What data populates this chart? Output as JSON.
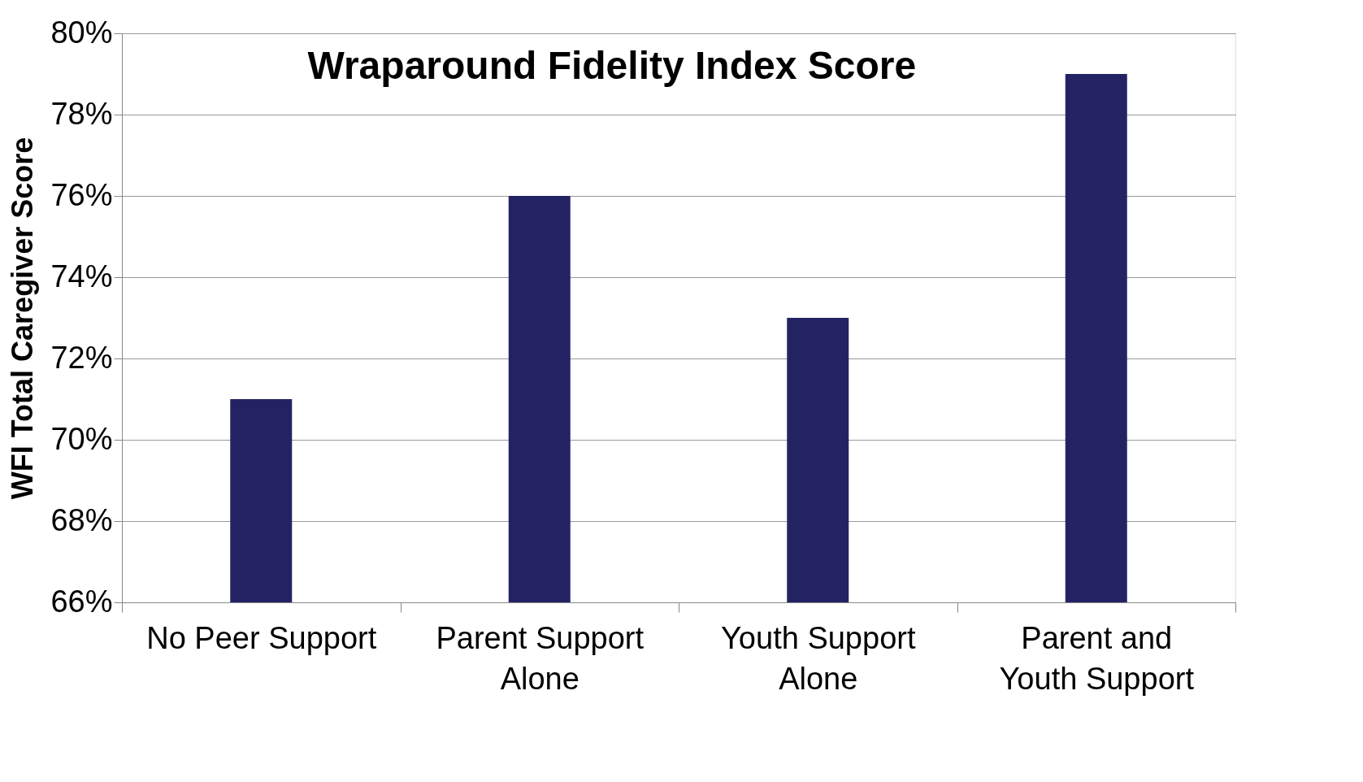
{
  "chart_data": {
    "type": "bar",
    "title": "Wraparound Fidelity Index Score",
    "ylabel": "WFI Total Caregiver Score",
    "categories": [
      "No Peer Support",
      "Parent Support Alone",
      "Youth Support Alone",
      "Parent and Youth Support"
    ],
    "values": [
      71,
      76,
      73,
      79
    ],
    "color": "#232364",
    "ylim": [
      66,
      80
    ],
    "yticks": [
      {
        "value": 66,
        "label": "66%"
      },
      {
        "value": 68,
        "label": "68%"
      },
      {
        "value": 70,
        "label": "70%"
      },
      {
        "value": 72,
        "label": "72%"
      },
      {
        "value": 74,
        "label": "74%"
      },
      {
        "value": 76,
        "label": "76%"
      },
      {
        "value": 78,
        "label": "78%"
      },
      {
        "value": 80,
        "label": "80%"
      }
    ],
    "grid": "y"
  }
}
